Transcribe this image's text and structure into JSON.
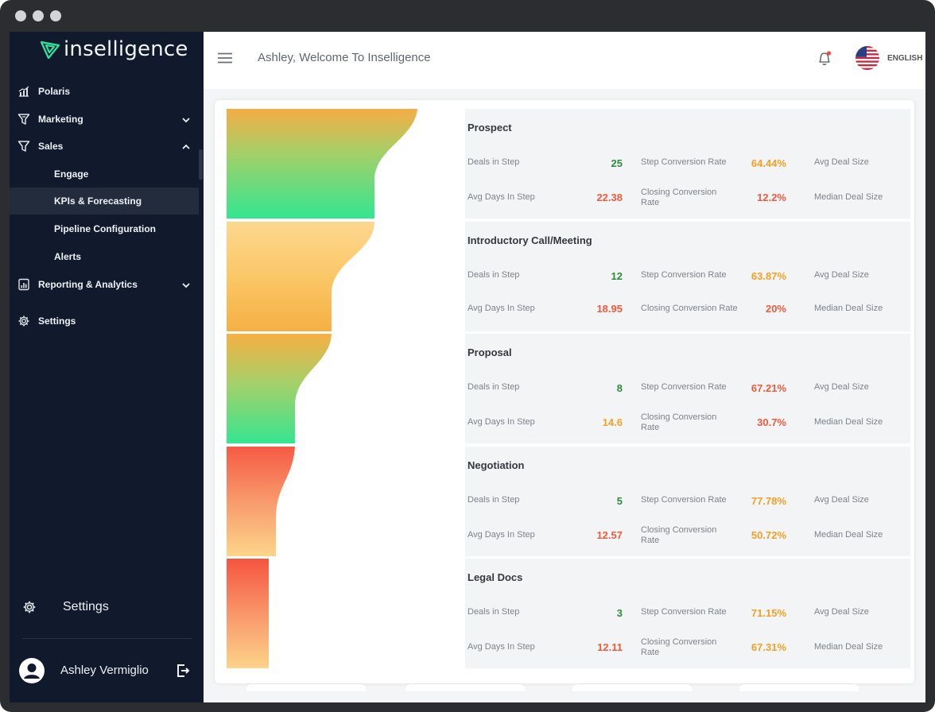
{
  "app": {
    "brand": "inselligence"
  },
  "sidebar": {
    "items": [
      {
        "label": "Polaris",
        "icon": "polaris-chart-icon"
      },
      {
        "label": "Marketing",
        "icon": "marketing-funnel-icon",
        "expand": "chevron-down-icon"
      },
      {
        "label": "Sales",
        "icon": "sales-funnel-icon",
        "expand": "chevron-up-icon"
      },
      {
        "label": "Engage"
      },
      {
        "label": "KPIs & Forecasting",
        "active": true
      },
      {
        "label": "Pipeline Configuration"
      },
      {
        "label": "Alerts"
      },
      {
        "label": "Reporting & Analytics",
        "icon": "report-icon",
        "expand": "chevron-down-icon"
      },
      {
        "label": "Settings",
        "icon": "gear-icon"
      }
    ],
    "bottom_settings": "Settings",
    "user_name": "Ashley Vermiglio"
  },
  "header": {
    "welcome": "Ashley, Welcome To Inselligence",
    "language": "ENGLISH"
  },
  "labels": {
    "deals_in_step": "Deals in Step",
    "avg_days": "Avg Days In Step",
    "step_conv": "Step Conversion Rate",
    "closing_conv": "Closing Conversion Rate",
    "closing_conv_line1": "Closing Conversion",
    "closing_conv_line2": "Rate",
    "avg_deal": "Avg Deal Size",
    "median_deal": "Median Deal Size"
  },
  "stages": [
    {
      "name": "Prospect",
      "deals": "25",
      "avg_days": "22.38",
      "step_conv": "64.44%",
      "closing_conv": "12.2%"
    },
    {
      "name": "Introductory Call/Meeting",
      "deals": "12",
      "avg_days": "18.95",
      "step_conv": "63.87%",
      "closing_conv": "20%"
    },
    {
      "name": "Proposal",
      "deals": "8",
      "avg_days": "14.6",
      "step_conv": "67.21%",
      "closing_conv": "30.7%"
    },
    {
      "name": "Negotiation",
      "deals": "5",
      "avg_days": "12.57",
      "step_conv": "77.78%",
      "closing_conv": "50.72%"
    },
    {
      "name": "Legal Docs",
      "deals": "3",
      "avg_days": "12.11",
      "step_conv": "71.15%",
      "closing_conv": "67.31%"
    }
  ],
  "colors": {
    "sidebar_bg": "#111a2c",
    "green": "#2e8b3a",
    "red": "#ef5a3d",
    "orange": "#f4a024",
    "brand_green": "#2ee59d"
  }
}
